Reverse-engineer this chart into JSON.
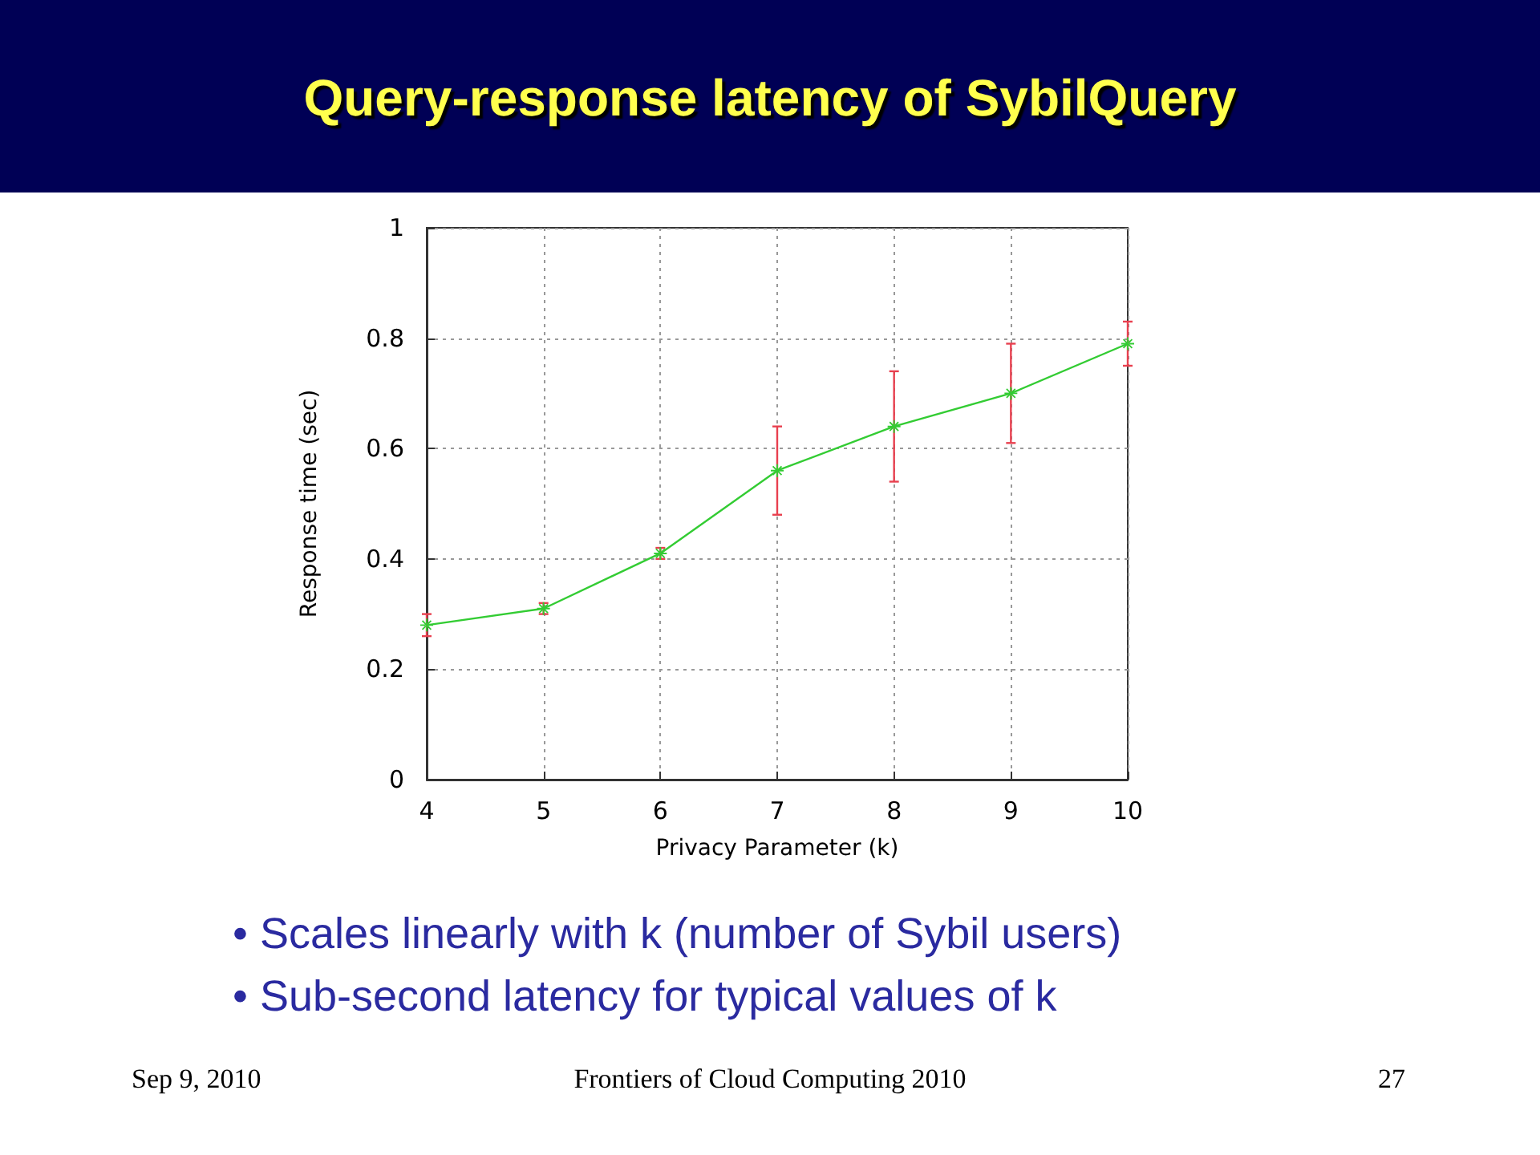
{
  "chart_data": {
    "type": "line",
    "title": "Query-response latency of SybilQuery",
    "xlabel": "Privacy Parameter (k)",
    "ylabel": "Response time (sec)",
    "x": [
      4,
      5,
      6,
      7,
      8,
      9,
      10
    ],
    "series": [
      {
        "color": "#33cc33",
        "values": [
          0.28,
          0.31,
          0.41,
          0.56,
          0.64,
          0.7,
          0.79
        ],
        "errors": [
          0.02,
          0.01,
          0.01,
          0.08,
          0.1,
          0.09,
          0.04
        ]
      }
    ],
    "xlim": [
      4,
      10
    ],
    "ylim": [
      0,
      1
    ],
    "xticks": [
      4,
      5,
      6,
      7,
      8,
      9,
      10
    ],
    "yticks": [
      0,
      0.2,
      0.4,
      0.6,
      0.8,
      1
    ],
    "grid": true,
    "marker": "star",
    "line_style": "solid",
    "annotations": [
      "• Scales linearly with k (number of Sybil users)",
      "• Sub-second latency for typical values of k",
      "Sep 9, 2010",
      "Frontiers of Cloud Computing 2010",
      "27"
    ]
  }
}
